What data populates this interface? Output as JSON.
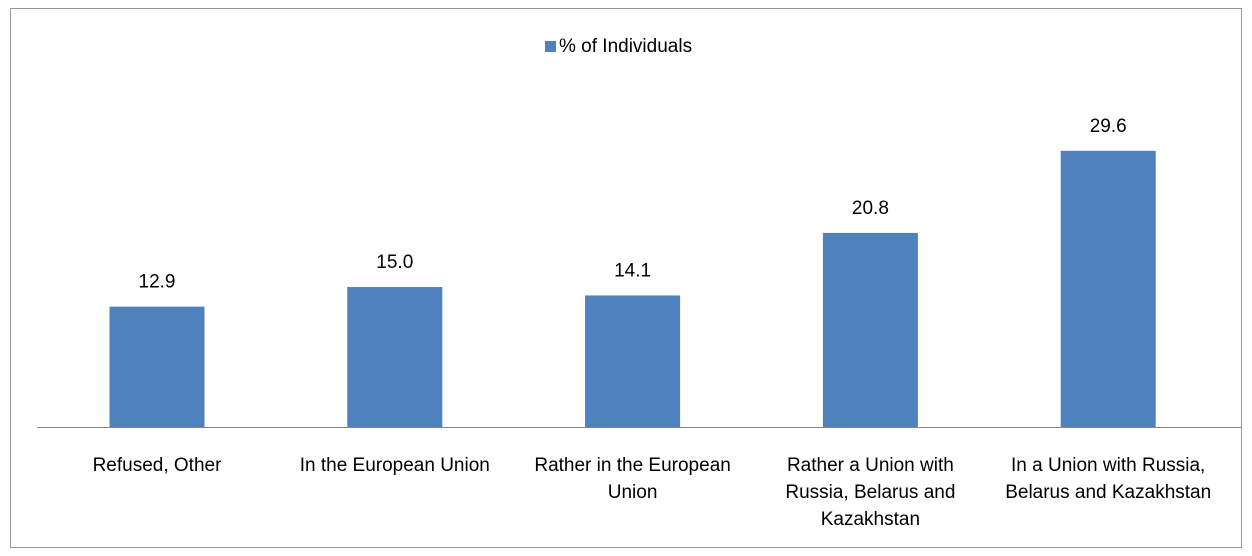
{
  "chart_data": {
    "type": "bar",
    "categories": [
      "Refused, Other",
      "In the European Union",
      "Rather in the European Union",
      "Rather a Union with Russia, Belarus and Kazakhstan",
      "In a Union with Russia, Belarus and Kazakhstan"
    ],
    "series": [
      {
        "name": "% of Individuals",
        "color": "#4f81bd",
        "values": [
          12.9,
          15.0,
          14.1,
          20.8,
          29.6
        ],
        "value_labels": [
          "12.9",
          "15.0",
          "14.1",
          "20.8",
          "29.6"
        ]
      }
    ],
    "legend": "top"
  }
}
